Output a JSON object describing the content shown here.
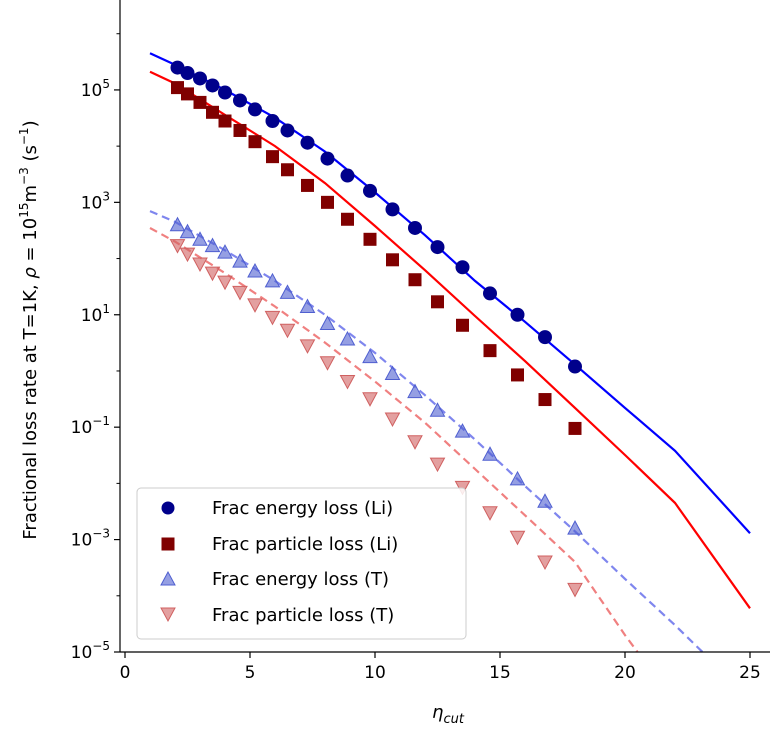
{
  "chart_data": {
    "type": "scatter",
    "title": "",
    "xlabel_base": "η",
    "xlabel_sub": "cut",
    "ylabel_parts": [
      "Fractional loss rate at T=1K, ",
      "ρ",
      " = 10",
      "15",
      "m",
      "−3",
      " (s",
      "−1",
      ")"
    ],
    "y_scale": "log",
    "xlim": [
      -0.2,
      25.8
    ],
    "ylim_exp": [
      -5,
      6.6
    ],
    "x_ticks": [
      0,
      5,
      10,
      15,
      20,
      25
    ],
    "y_tick_exponents": [
      -5,
      -3,
      -1,
      1,
      3,
      5
    ],
    "y_tick_base": "10",
    "y_tick_exp_labels": [
      "−5",
      "−3",
      "−1",
      "1",
      "3",
      "5"
    ],
    "grid": false,
    "legend_position": "lower-left",
    "series": [
      {
        "name": "Frac energy loss (Li)",
        "marker": "circle",
        "color": "#00008b",
        "line_color": "#0000ff",
        "line_style": "solid",
        "x": [
          2.1,
          2.5,
          3.0,
          3.5,
          4.0,
          4.6,
          5.2,
          5.9,
          6.5,
          7.3,
          8.1,
          8.9,
          9.8,
          10.7,
          11.6,
          12.5,
          13.5,
          14.6,
          15.7,
          16.8,
          18.0
        ],
        "y": [
          250000,
          200000,
          160000,
          120000,
          90000,
          65000,
          45000,
          28000,
          19000,
          11500,
          6000,
          3000,
          1600,
          750,
          350,
          160,
          70,
          24,
          10,
          4,
          1.2
        ],
        "fit_x": [
          1.0,
          2,
          4,
          6,
          8,
          10,
          12,
          14,
          16,
          18,
          20,
          22,
          25
        ],
        "fit_y": [
          450000,
          280000,
          100000,
          32000,
          8000,
          1500,
          260,
          40,
          7.5,
          1.3,
          0.22,
          0.038,
          0.0013
        ]
      },
      {
        "name": "Frac particle loss (Li)",
        "marker": "square",
        "color": "#800000",
        "line_color": "#ff0000",
        "line_style": "solid",
        "x": [
          2.1,
          2.5,
          3.0,
          3.5,
          4.0,
          4.6,
          5.2,
          5.9,
          6.5,
          7.3,
          8.1,
          8.9,
          9.8,
          10.7,
          11.6,
          12.5,
          13.5,
          14.6,
          15.7,
          16.8,
          18.0
        ],
        "y": [
          110000,
          85000,
          60000,
          40000,
          28000,
          19000,
          12000,
          6500,
          3800,
          2000,
          1000,
          500,
          220,
          95,
          42,
          17,
          6.5,
          2.3,
          0.85,
          0.31,
          0.095
        ],
        "fit_x": [
          1.0,
          2,
          4,
          6,
          8,
          10,
          12,
          14,
          16,
          18,
          20,
          22,
          25
        ],
        "fit_y": [
          210000,
          130000,
          36000,
          10000,
          2200,
          380,
          62,
          9.5,
          1.5,
          0.22,
          0.032,
          0.0045,
          6e-05
        ]
      },
      {
        "name": "Frac energy loss (T)",
        "marker": "triangle-up",
        "color": "#4f5fd0",
        "line_color": "#7f86ee",
        "line_style": "dashed",
        "x": [
          2.1,
          2.5,
          3.0,
          3.5,
          4.0,
          4.6,
          5.2,
          5.9,
          6.5,
          7.3,
          8.1,
          8.9,
          9.8,
          10.7,
          11.6,
          12.5,
          13.5,
          14.6,
          15.7,
          16.8,
          18.0
        ],
        "y": [
          400,
          300,
          220,
          170,
          130,
          90,
          60,
          40,
          25,
          14,
          7,
          3.7,
          1.8,
          0.9,
          0.43,
          0.2,
          0.085,
          0.033,
          0.012,
          0.0048,
          0.0016
        ],
        "fit_x": [
          1.0,
          2,
          4,
          6,
          8,
          10,
          12,
          14,
          16,
          18,
          20,
          22,
          23.1
        ],
        "fit_y": [
          700,
          450,
          140,
          40,
          10,
          2.1,
          0.37,
          0.06,
          0.009,
          0.0014,
          0.0002,
          3e-05,
          1e-05
        ]
      },
      {
        "name": "Frac particle loss (T)",
        "marker": "triangle-down",
        "color": "#d06060",
        "line_color": "#f08080",
        "line_style": "dashed",
        "x": [
          2.1,
          2.5,
          3.0,
          3.5,
          4.0,
          4.6,
          5.2,
          5.9,
          6.5,
          7.3,
          8.1,
          8.9,
          9.8,
          10.7,
          11.6,
          12.5,
          13.5,
          14.6,
          15.7,
          16.8,
          18.0
        ],
        "y": [
          170,
          120,
          80,
          55,
          38,
          25,
          15,
          9,
          5.3,
          2.8,
          1.4,
          0.65,
          0.32,
          0.14,
          0.055,
          0.022,
          0.0085,
          0.003,
          0.0011,
          0.0004,
          0.00013
        ],
        "fit_x": [
          1.0,
          2,
          4,
          6,
          8,
          10,
          12,
          14,
          16,
          18,
          20,
          20.5
        ],
        "fit_y": [
          350,
          200,
          55,
          14,
          3.2,
          0.65,
          0.12,
          0.018,
          0.0027,
          0.0004,
          2e-05,
          1e-05
        ]
      }
    ]
  }
}
